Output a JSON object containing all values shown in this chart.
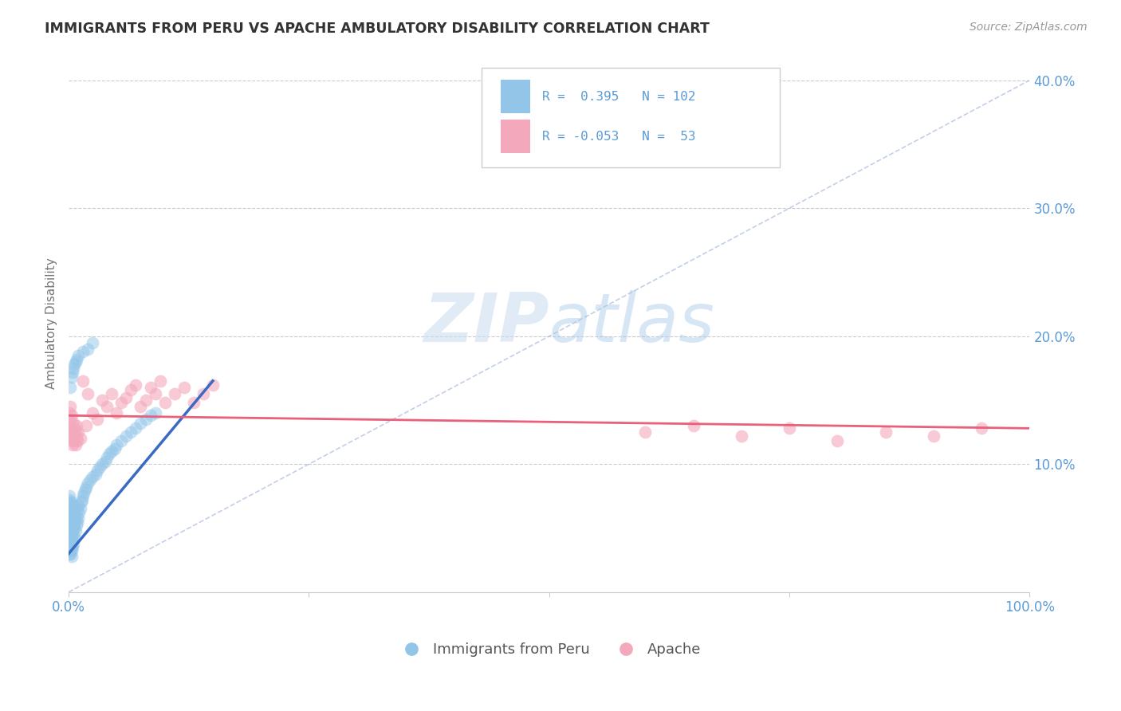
{
  "title": "IMMIGRANTS FROM PERU VS APACHE AMBULATORY DISABILITY CORRELATION CHART",
  "source": "Source: ZipAtlas.com",
  "ylabel": "Ambulatory Disability",
  "legend_label1": "Immigrants from Peru",
  "legend_label2": "Apache",
  "watermark_zip": "ZIP",
  "watermark_atlas": "atlas",
  "color_blue": "#92C5E8",
  "color_pink": "#F4A8BC",
  "color_blue_line": "#3A6BC4",
  "color_pink_line": "#E8607A",
  "color_diagonal": "#AABBDD",
  "title_color": "#333333",
  "axis_label_color": "#5B9BD5",
  "background": "#FFFFFF",
  "blue_scatter_x": [
    0.001,
    0.001,
    0.001,
    0.001,
    0.001,
    0.001,
    0.001,
    0.001,
    0.001,
    0.001,
    0.001,
    0.001,
    0.001,
    0.001,
    0.001,
    0.001,
    0.001,
    0.001,
    0.001,
    0.001,
    0.002,
    0.002,
    0.002,
    0.002,
    0.002,
    0.002,
    0.002,
    0.002,
    0.002,
    0.002,
    0.003,
    0.003,
    0.003,
    0.003,
    0.003,
    0.003,
    0.003,
    0.003,
    0.003,
    0.003,
    0.004,
    0.004,
    0.004,
    0.004,
    0.004,
    0.005,
    0.005,
    0.005,
    0.005,
    0.005,
    0.006,
    0.006,
    0.006,
    0.006,
    0.007,
    0.007,
    0.008,
    0.008,
    0.009,
    0.009,
    0.01,
    0.01,
    0.011,
    0.012,
    0.013,
    0.014,
    0.015,
    0.016,
    0.017,
    0.018,
    0.02,
    0.022,
    0.025,
    0.028,
    0.03,
    0.032,
    0.035,
    0.038,
    0.04,
    0.042,
    0.045,
    0.048,
    0.05,
    0.055,
    0.06,
    0.065,
    0.07,
    0.075,
    0.08,
    0.085,
    0.09,
    0.002,
    0.003,
    0.004,
    0.005,
    0.006,
    0.007,
    0.008,
    0.01,
    0.015,
    0.02,
    0.025
  ],
  "blue_scatter_y": [
    0.03,
    0.032,
    0.035,
    0.038,
    0.04,
    0.042,
    0.045,
    0.048,
    0.05,
    0.052,
    0.055,
    0.058,
    0.06,
    0.062,
    0.064,
    0.066,
    0.068,
    0.07,
    0.072,
    0.075,
    0.03,
    0.033,
    0.036,
    0.04,
    0.044,
    0.048,
    0.052,
    0.056,
    0.06,
    0.064,
    0.028,
    0.032,
    0.036,
    0.04,
    0.045,
    0.05,
    0.055,
    0.06,
    0.065,
    0.07,
    0.035,
    0.04,
    0.048,
    0.055,
    0.062,
    0.038,
    0.045,
    0.052,
    0.06,
    0.068,
    0.042,
    0.05,
    0.058,
    0.066,
    0.048,
    0.056,
    0.052,
    0.06,
    0.055,
    0.065,
    0.058,
    0.068,
    0.062,
    0.065,
    0.07,
    0.072,
    0.075,
    0.078,
    0.08,
    0.082,
    0.085,
    0.088,
    0.09,
    0.092,
    0.095,
    0.098,
    0.1,
    0.102,
    0.105,
    0.108,
    0.11,
    0.112,
    0.115,
    0.118,
    0.122,
    0.125,
    0.128,
    0.132,
    0.135,
    0.138,
    0.14,
    0.16,
    0.168,
    0.172,
    0.175,
    0.178,
    0.18,
    0.182,
    0.185,
    0.188,
    0.19,
    0.195
  ],
  "pink_scatter_x": [
    0.001,
    0.001,
    0.002,
    0.002,
    0.002,
    0.003,
    0.003,
    0.003,
    0.004,
    0.004,
    0.005,
    0.005,
    0.006,
    0.006,
    0.007,
    0.007,
    0.008,
    0.008,
    0.009,
    0.01,
    0.012,
    0.015,
    0.018,
    0.02,
    0.025,
    0.03,
    0.035,
    0.04,
    0.045,
    0.05,
    0.055,
    0.06,
    0.065,
    0.07,
    0.075,
    0.08,
    0.085,
    0.09,
    0.095,
    0.1,
    0.11,
    0.12,
    0.13,
    0.14,
    0.15,
    0.6,
    0.65,
    0.7,
    0.75,
    0.8,
    0.85,
    0.9,
    0.95
  ],
  "pink_scatter_y": [
    0.13,
    0.14,
    0.12,
    0.135,
    0.145,
    0.118,
    0.128,
    0.138,
    0.115,
    0.125,
    0.122,
    0.132,
    0.118,
    0.128,
    0.115,
    0.125,
    0.12,
    0.13,
    0.118,
    0.125,
    0.12,
    0.165,
    0.13,
    0.155,
    0.14,
    0.135,
    0.15,
    0.145,
    0.155,
    0.14,
    0.148,
    0.152,
    0.158,
    0.162,
    0.145,
    0.15,
    0.16,
    0.155,
    0.165,
    0.148,
    0.155,
    0.16,
    0.148,
    0.155,
    0.162,
    0.125,
    0.13,
    0.122,
    0.128,
    0.118,
    0.125,
    0.122,
    0.128
  ],
  "blue_line": {
    "x0": 0.0,
    "y0": 0.03,
    "x1": 0.15,
    "y1": 0.165
  },
  "pink_line": {
    "x0": 0.0,
    "y0": 0.138,
    "x1": 1.0,
    "y1": 0.128
  },
  "diag_line": {
    "x0": 0.0,
    "y0": 0.0,
    "x1": 1.0,
    "y1": 0.4
  },
  "xlim": [
    0.0,
    1.0
  ],
  "ylim": [
    0.0,
    0.42
  ],
  "ytick_vals": [
    0.1,
    0.2,
    0.3,
    0.4
  ],
  "xtick_vals": [
    0.0,
    0.25,
    0.5,
    0.75,
    1.0
  ]
}
